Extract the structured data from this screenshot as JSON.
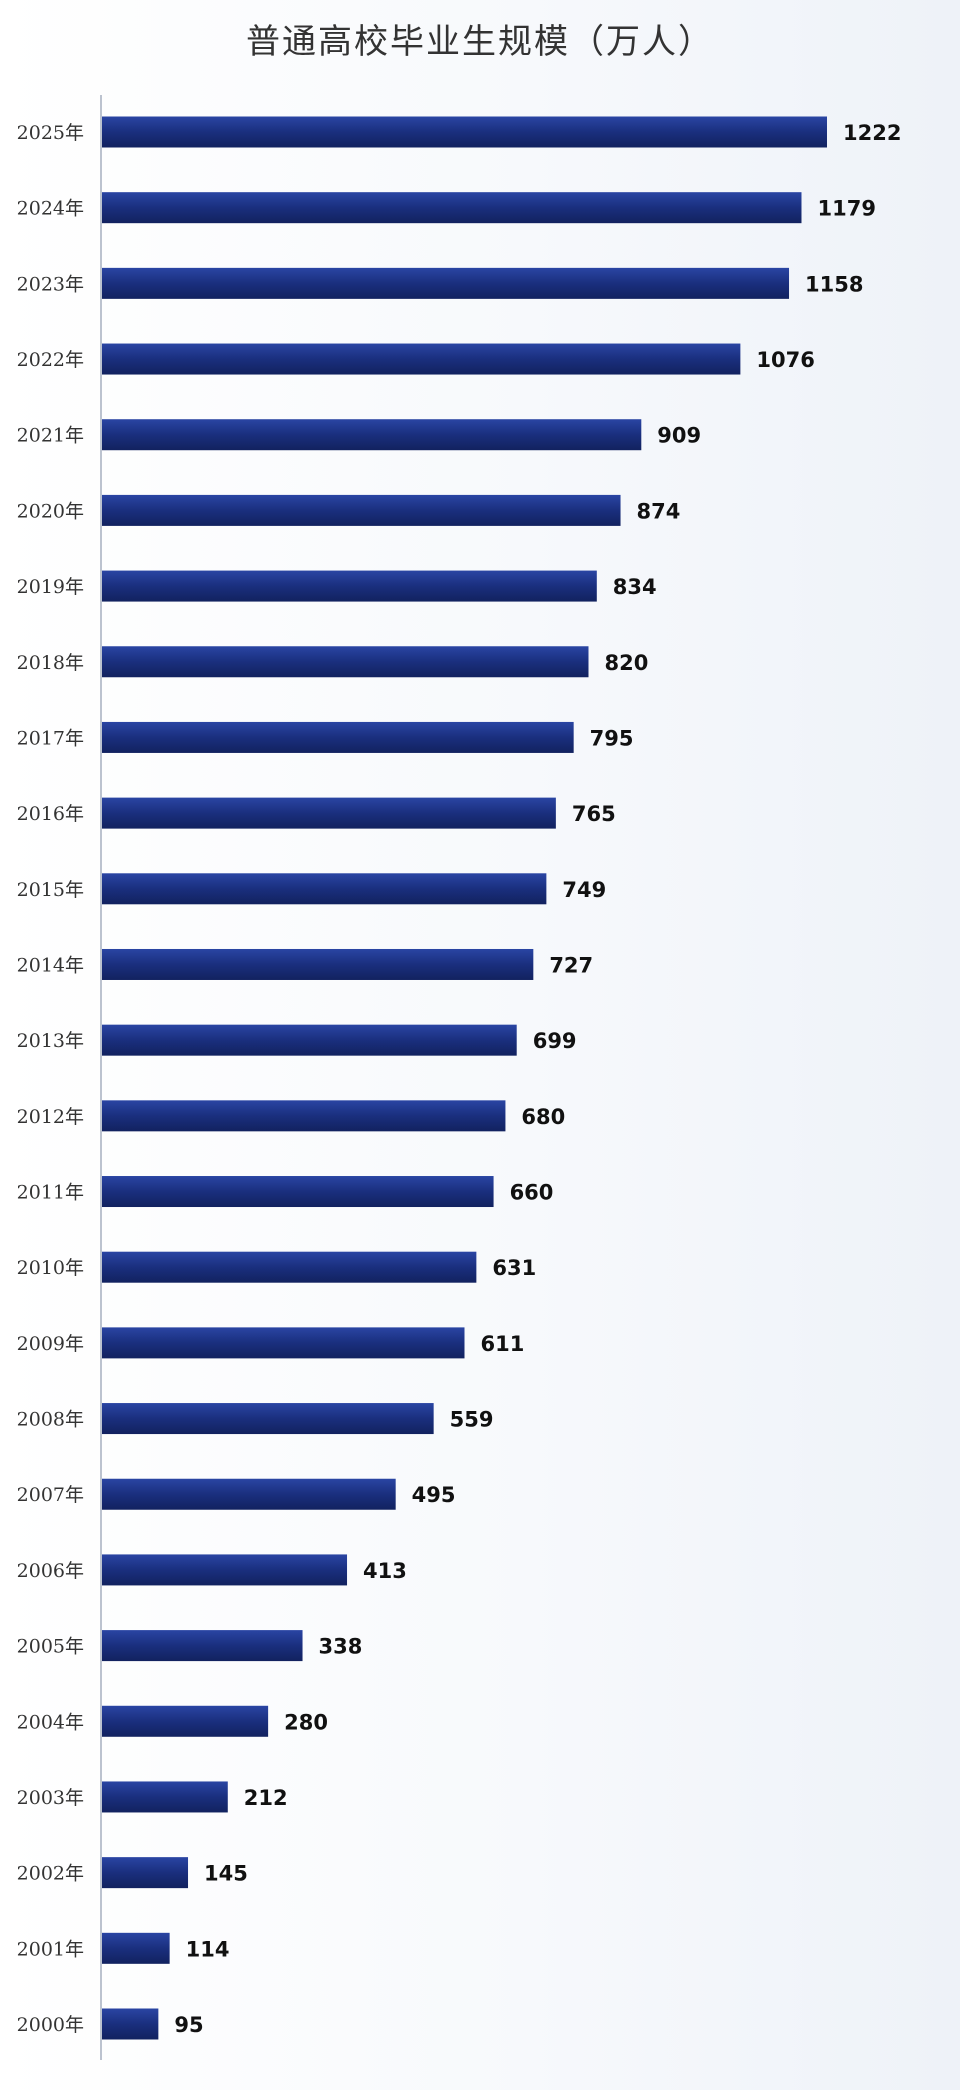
{
  "chart_data": {
    "type": "bar",
    "orientation": "horizontal",
    "title": "普通高校毕业生规模（万人）",
    "categories": [
      "2025年",
      "2024年",
      "2023年",
      "2022年",
      "2021年",
      "2020年",
      "2019年",
      "2018年",
      "2017年",
      "2016年",
      "2015年",
      "2014年",
      "2013年",
      "2012年",
      "2011年",
      "2010年",
      "2009年",
      "2008年",
      "2007年",
      "2006年",
      "2005年",
      "2004年",
      "2003年",
      "2002年",
      "2001年",
      "2000年"
    ],
    "values": [
      1222,
      1179,
      1158,
      1076,
      909,
      874,
      834,
      820,
      795,
      765,
      749,
      727,
      699,
      680,
      660,
      631,
      611,
      559,
      495,
      413,
      338,
      280,
      212,
      145,
      114,
      95
    ],
    "xlim": [
      0,
      1222
    ],
    "grid": false,
    "legend": "none",
    "bar_color": "#1a2f7e",
    "label_color": "#111111"
  }
}
